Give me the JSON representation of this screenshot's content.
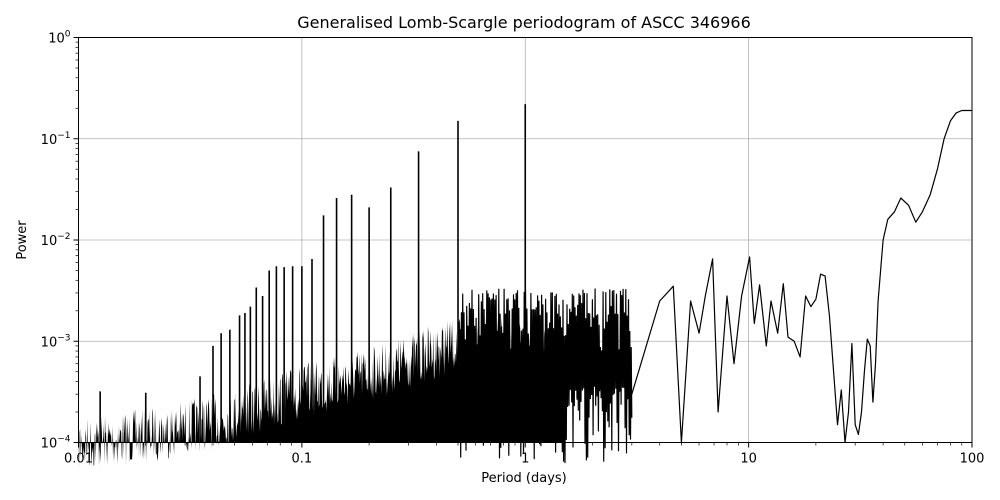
{
  "chart_data": {
    "type": "line",
    "title": "Generalised Lomb-Scargle periodogram of ASCC 346966",
    "xlabel": "Period (days)",
    "ylabel": "Power",
    "xscale": "log",
    "yscale": "log",
    "xlim": [
      0.01,
      100
    ],
    "ylim": [
      0.0001,
      1
    ],
    "grid": true,
    "legend": null,
    "x_ticks": [
      {
        "value": 0.01,
        "label": "0.01"
      },
      {
        "value": 0.1,
        "label": "0.1"
      },
      {
        "value": 1,
        "label": "1"
      },
      {
        "value": 10,
        "label": "10"
      },
      {
        "value": 100,
        "label": "100"
      }
    ],
    "y_ticks": [
      {
        "value": 1,
        "base": "10",
        "exp": "0"
      },
      {
        "value": 0.1,
        "base": "10",
        "exp": "−1"
      },
      {
        "value": 0.01,
        "base": "10",
        "exp": "−2"
      },
      {
        "value": 0.001,
        "base": "10",
        "exp": "−3"
      },
      {
        "value": 0.0001,
        "base": "10",
        "exp": "−4"
      }
    ],
    "noise_floor": {
      "description": "dense noise envelope rising with period",
      "x": [
        0.01,
        0.02,
        0.04,
        0.07,
        0.1,
        0.2,
        0.3,
        0.5,
        0.8,
        1.0,
        1.5
      ],
      "upper": [
        0.00018,
        0.00022,
        0.0003,
        0.00045,
        0.0006,
        0.0009,
        0.0012,
        0.0018,
        0.0018,
        0.0015,
        0.0012
      ]
    },
    "alias_peaks": [
      {
        "period": 0.0125,
        "power": 0.00032
      },
      {
        "period": 0.02,
        "power": 0.00031
      },
      {
        "period": 0.035,
        "power": 0.00045
      },
      {
        "period": 0.04,
        "power": 0.0009
      },
      {
        "period": 0.0435,
        "power": 0.0012
      },
      {
        "period": 0.0476,
        "power": 0.0013
      },
      {
        "period": 0.0526,
        "power": 0.0018
      },
      {
        "period": 0.0556,
        "power": 0.0019
      },
      {
        "period": 0.0588,
        "power": 0.0022
      },
      {
        "period": 0.0625,
        "power": 0.0034
      },
      {
        "period": 0.0667,
        "power": 0.0028
      },
      {
        "period": 0.0714,
        "power": 0.005
      },
      {
        "period": 0.0769,
        "power": 0.0055
      },
      {
        "period": 0.0833,
        "power": 0.0054
      },
      {
        "period": 0.0909,
        "power": 0.0055
      },
      {
        "period": 0.1,
        "power": 0.0055
      },
      {
        "period": 0.111,
        "power": 0.0065
      },
      {
        "period": 0.125,
        "power": 0.0175
      },
      {
        "period": 0.143,
        "power": 0.026
      },
      {
        "period": 0.167,
        "power": 0.028
      },
      {
        "period": 0.2,
        "power": 0.021
      },
      {
        "period": 0.25,
        "power": 0.033
      },
      {
        "period": 0.333,
        "power": 0.075
      },
      {
        "period": 0.5,
        "power": 0.15
      },
      {
        "period": 1.0,
        "power": 0.22
      }
    ],
    "long_period_curve": {
      "x": [
        3,
        4,
        4.6,
        5,
        5.5,
        6,
        6.4,
        6.9,
        7.3,
        8,
        8.6,
        9.3,
        10.1,
        10.6,
        11.2,
        12,
        12.6,
        13.5,
        14.3,
        15,
        16,
        17,
        18,
        19,
        20,
        21,
        22,
        23,
        24,
        25,
        26,
        27,
        28,
        29,
        30,
        31,
        32,
        33,
        34,
        35,
        36,
        37,
        38,
        40,
        42,
        45,
        48,
        52,
        56,
        60,
        65,
        70,
        75,
        80,
        85,
        90,
        95,
        100
      ],
      "y": [
        0.0003,
        0.0025,
        0.0035,
        0.0001,
        0.0025,
        0.0012,
        0.0028,
        0.0065,
        0.0002,
        0.0028,
        0.0006,
        0.0028,
        0.0068,
        0.0015,
        0.0036,
        0.0009,
        0.0025,
        0.0012,
        0.0037,
        0.0011,
        0.001,
        0.0007,
        0.0028,
        0.0022,
        0.0026,
        0.0046,
        0.0044,
        0.0018,
        0.0005,
        0.00015,
        0.00033,
        0.0001,
        0.0002,
        0.00095,
        0.00015,
        0.00012,
        0.0002,
        0.0005,
        0.00105,
        0.0009,
        0.00025,
        0.0006,
        0.0025,
        0.01,
        0.016,
        0.019,
        0.026,
        0.022,
        0.015,
        0.019,
        0.028,
        0.05,
        0.1,
        0.15,
        0.18,
        0.19,
        0.19,
        0.19
      ]
    },
    "colors": {
      "line": "#000000",
      "grid": "#b0b0b0",
      "background": "#ffffff"
    }
  }
}
